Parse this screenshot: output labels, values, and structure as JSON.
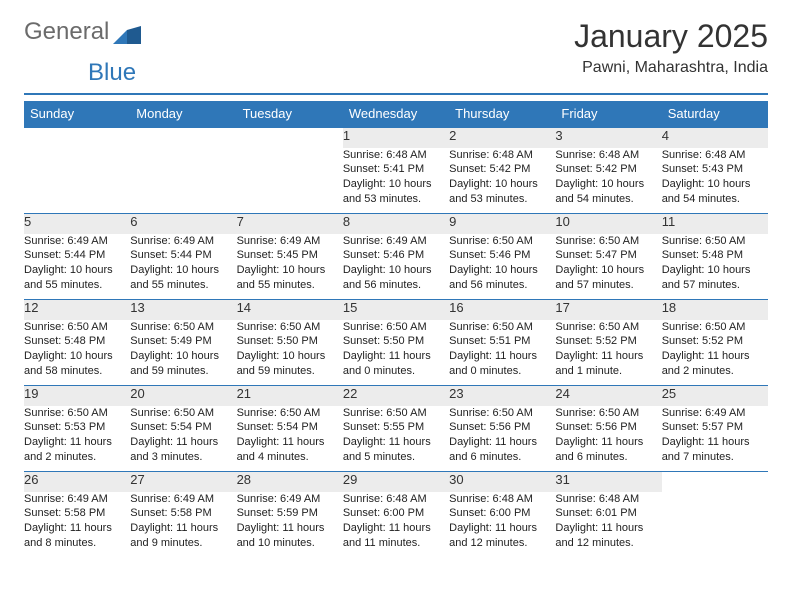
{
  "brand": {
    "part1": "General",
    "part2": "Blue"
  },
  "title": "January 2025",
  "subtitle": "Pawni, Maharashtra, India",
  "colors": {
    "accent": "#2f77b8",
    "dayBg": "#ececec",
    "text": "#222222",
    "pageBg": "#ffffff"
  },
  "dayHeaders": [
    "Sunday",
    "Monday",
    "Tuesday",
    "Wednesday",
    "Thursday",
    "Friday",
    "Saturday"
  ],
  "weeks": [
    [
      null,
      null,
      null,
      {
        "n": "1",
        "sunrise": "6:48 AM",
        "sunset": "5:41 PM",
        "daylight": "10 hours and 53 minutes."
      },
      {
        "n": "2",
        "sunrise": "6:48 AM",
        "sunset": "5:42 PM",
        "daylight": "10 hours and 53 minutes."
      },
      {
        "n": "3",
        "sunrise": "6:48 AM",
        "sunset": "5:42 PM",
        "daylight": "10 hours and 54 minutes."
      },
      {
        "n": "4",
        "sunrise": "6:48 AM",
        "sunset": "5:43 PM",
        "daylight": "10 hours and 54 minutes."
      }
    ],
    [
      {
        "n": "5",
        "sunrise": "6:49 AM",
        "sunset": "5:44 PM",
        "daylight": "10 hours and 55 minutes."
      },
      {
        "n": "6",
        "sunrise": "6:49 AM",
        "sunset": "5:44 PM",
        "daylight": "10 hours and 55 minutes."
      },
      {
        "n": "7",
        "sunrise": "6:49 AM",
        "sunset": "5:45 PM",
        "daylight": "10 hours and 55 minutes."
      },
      {
        "n": "8",
        "sunrise": "6:49 AM",
        "sunset": "5:46 PM",
        "daylight": "10 hours and 56 minutes."
      },
      {
        "n": "9",
        "sunrise": "6:50 AM",
        "sunset": "5:46 PM",
        "daylight": "10 hours and 56 minutes."
      },
      {
        "n": "10",
        "sunrise": "6:50 AM",
        "sunset": "5:47 PM",
        "daylight": "10 hours and 57 minutes."
      },
      {
        "n": "11",
        "sunrise": "6:50 AM",
        "sunset": "5:48 PM",
        "daylight": "10 hours and 57 minutes."
      }
    ],
    [
      {
        "n": "12",
        "sunrise": "6:50 AM",
        "sunset": "5:48 PM",
        "daylight": "10 hours and 58 minutes."
      },
      {
        "n": "13",
        "sunrise": "6:50 AM",
        "sunset": "5:49 PM",
        "daylight": "10 hours and 59 minutes."
      },
      {
        "n": "14",
        "sunrise": "6:50 AM",
        "sunset": "5:50 PM",
        "daylight": "10 hours and 59 minutes."
      },
      {
        "n": "15",
        "sunrise": "6:50 AM",
        "sunset": "5:50 PM",
        "daylight": "11 hours and 0 minutes."
      },
      {
        "n": "16",
        "sunrise": "6:50 AM",
        "sunset": "5:51 PM",
        "daylight": "11 hours and 0 minutes."
      },
      {
        "n": "17",
        "sunrise": "6:50 AM",
        "sunset": "5:52 PM",
        "daylight": "11 hours and 1 minute."
      },
      {
        "n": "18",
        "sunrise": "6:50 AM",
        "sunset": "5:52 PM",
        "daylight": "11 hours and 2 minutes."
      }
    ],
    [
      {
        "n": "19",
        "sunrise": "6:50 AM",
        "sunset": "5:53 PM",
        "daylight": "11 hours and 2 minutes."
      },
      {
        "n": "20",
        "sunrise": "6:50 AM",
        "sunset": "5:54 PM",
        "daylight": "11 hours and 3 minutes."
      },
      {
        "n": "21",
        "sunrise": "6:50 AM",
        "sunset": "5:54 PM",
        "daylight": "11 hours and 4 minutes."
      },
      {
        "n": "22",
        "sunrise": "6:50 AM",
        "sunset": "5:55 PM",
        "daylight": "11 hours and 5 minutes."
      },
      {
        "n": "23",
        "sunrise": "6:50 AM",
        "sunset": "5:56 PM",
        "daylight": "11 hours and 6 minutes."
      },
      {
        "n": "24",
        "sunrise": "6:50 AM",
        "sunset": "5:56 PM",
        "daylight": "11 hours and 6 minutes."
      },
      {
        "n": "25",
        "sunrise": "6:49 AM",
        "sunset": "5:57 PM",
        "daylight": "11 hours and 7 minutes."
      }
    ],
    [
      {
        "n": "26",
        "sunrise": "6:49 AM",
        "sunset": "5:58 PM",
        "daylight": "11 hours and 8 minutes."
      },
      {
        "n": "27",
        "sunrise": "6:49 AM",
        "sunset": "5:58 PM",
        "daylight": "11 hours and 9 minutes."
      },
      {
        "n": "28",
        "sunrise": "6:49 AM",
        "sunset": "5:59 PM",
        "daylight": "11 hours and 10 minutes."
      },
      {
        "n": "29",
        "sunrise": "6:48 AM",
        "sunset": "6:00 PM",
        "daylight": "11 hours and 11 minutes."
      },
      {
        "n": "30",
        "sunrise": "6:48 AM",
        "sunset": "6:00 PM",
        "daylight": "11 hours and 12 minutes."
      },
      {
        "n": "31",
        "sunrise": "6:48 AM",
        "sunset": "6:01 PM",
        "daylight": "11 hours and 12 minutes."
      },
      null
    ]
  ],
  "labels": {
    "sunrise": "Sunrise: ",
    "sunset": "Sunset: ",
    "daylight": "Daylight: "
  }
}
